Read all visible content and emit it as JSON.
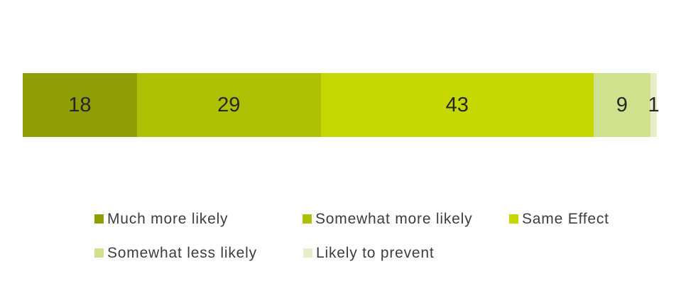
{
  "chart_data": {
    "type": "bar",
    "variant": "horizontal-stacked",
    "title": "",
    "xlabel": "",
    "ylabel": "",
    "total": 100,
    "axes_shown": false,
    "grid": false,
    "value_labels_shown": true,
    "legend_position": "bottom",
    "legend_rows": 2,
    "segments": [
      {
        "label": "Much more likely",
        "value": 18,
        "color": "#8E9E04"
      },
      {
        "label": "Somewhat more likely",
        "value": 29,
        "color": "#ADC004"
      },
      {
        "label": "Same Effect",
        "value": 43,
        "color": "#C6D802"
      },
      {
        "label": "Somewhat less likely",
        "value": 9,
        "color": "#D0E18E"
      },
      {
        "label": "Likely to prevent",
        "value": 1,
        "color": "#E6EDC8"
      }
    ]
  },
  "colors": {
    "background": "#ffffff",
    "value_label_text": "#262626",
    "legend_text": "#3d3d3d"
  }
}
